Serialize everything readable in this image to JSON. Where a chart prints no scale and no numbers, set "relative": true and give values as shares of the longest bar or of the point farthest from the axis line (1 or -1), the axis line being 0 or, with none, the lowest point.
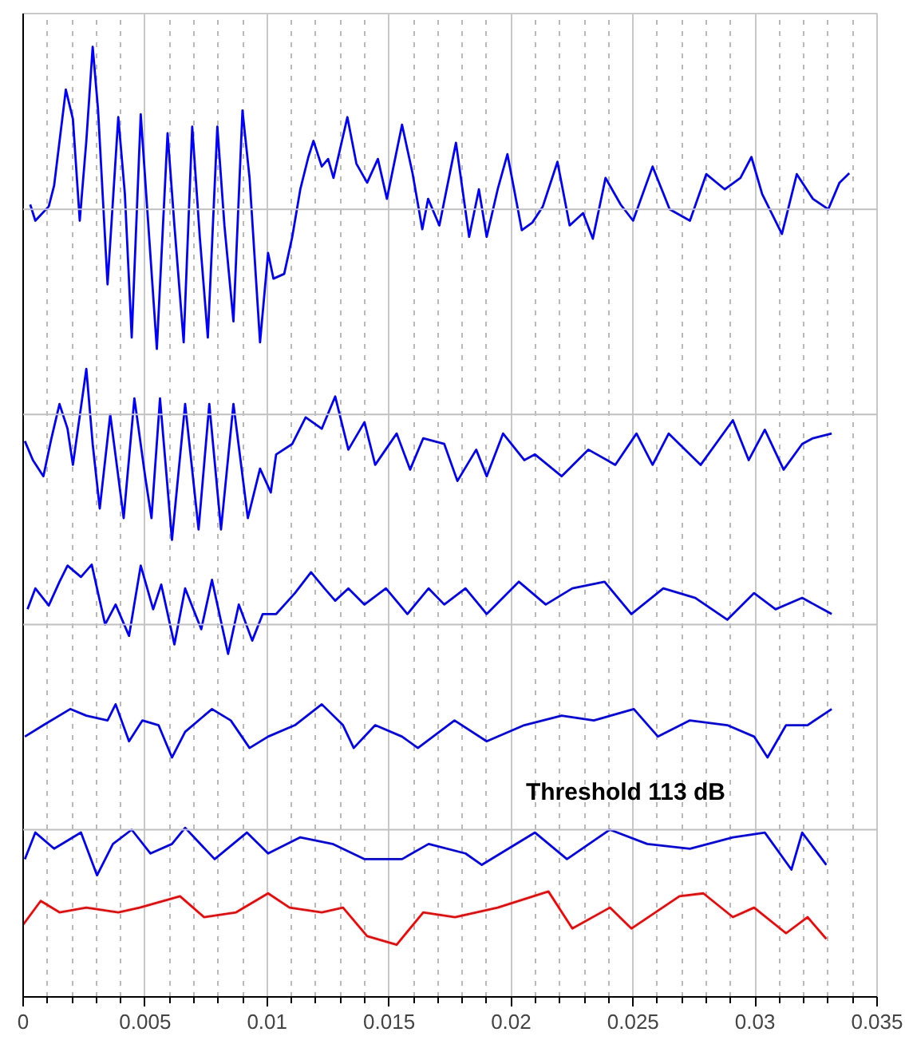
{
  "chart_data": {
    "type": "line",
    "relative": true,
    "xlim": [
      0,
      0.035
    ],
    "xticks": [
      0,
      0.005,
      0.01,
      0.015,
      0.02,
      0.025,
      0.03,
      0.035
    ],
    "grid": "x",
    "marker": "none",
    "line_style": "solid",
    "tick_labels": "x",
    "annotations": [
      "Threshold 113 dB"
    ],
    "ref_lines": [
      {
        "axis": "y",
        "value": 0.829,
        "color": "#c0c0c0"
      },
      {
        "axis": "y",
        "value": 0.613,
        "color": "#c0c0c0"
      },
      {
        "axis": "y",
        "value": 0.392,
        "color": "#c0c0c0"
      },
      {
        "axis": "y",
        "value": 0.176,
        "color": "#c0c0c0"
      }
    ],
    "series": [
      {
        "color": "#0000ff",
        "x": [
          0.00029,
          0.0005,
          0.00105,
          0.00127,
          0.00175,
          0.00204,
          0.00232,
          0.00259,
          0.00285,
          0.00307,
          0.00346,
          0.0039,
          0.00417,
          0.00445,
          0.00482,
          0.0051,
          0.00548,
          0.00592,
          0.0062,
          0.00658,
          0.00693,
          0.00724,
          0.00757,
          0.00796,
          0.00825,
          0.00862,
          0.00899,
          0.00928,
          0.00971,
          0.01004,
          0.01026,
          0.0107,
          0.01103,
          0.01136,
          0.01169,
          0.0119,
          0.01224,
          0.0125,
          0.01272,
          0.01329,
          0.01366,
          0.0141,
          0.01454,
          0.01491,
          0.01553,
          0.01596,
          0.01636,
          0.0166,
          0.01706,
          0.01774,
          0.01828,
          0.01868,
          0.019,
          0.01945,
          0.01985,
          0.02044,
          0.02087,
          0.0213,
          0.0219,
          0.0224,
          0.02295,
          0.02335,
          0.02387,
          0.02449,
          0.025,
          0.0258,
          0.0265,
          0.02733,
          0.028,
          0.02876,
          0.0294,
          0.02985,
          0.03029,
          0.0311,
          0.03171,
          0.03237,
          0.033,
          0.03346,
          0.03386
        ],
        "values": [
          0.834,
          0.817,
          0.832,
          0.854,
          0.955,
          0.924,
          0.817,
          0.901,
          1.0,
          0.934,
          0.75,
          0.926,
          0.845,
          0.694,
          0.929,
          0.824,
          0.682,
          0.909,
          0.812,
          0.689,
          0.916,
          0.8,
          0.694,
          0.916,
          0.812,
          0.711,
          0.933,
          0.862,
          0.689,
          0.783,
          0.756,
          0.761,
          0.8,
          0.85,
          0.884,
          0.901,
          0.874,
          0.882,
          0.862,
          0.926,
          0.877,
          0.857,
          0.882,
          0.84,
          0.918,
          0.867,
          0.808,
          0.84,
          0.812,
          0.899,
          0.8,
          0.85,
          0.8,
          0.85,
          0.887,
          0.807,
          0.815,
          0.832,
          0.879,
          0.812,
          0.825,
          0.798,
          0.862,
          0.834,
          0.817,
          0.874,
          0.829,
          0.817,
          0.866,
          0.85,
          0.862,
          0.884,
          0.845,
          0.803,
          0.866,
          0.84,
          0.829,
          0.857,
          0.867
        ]
      },
      {
        "color": "#0000ff",
        "x": [
          7e-05,
          0.0004,
          0.00083,
          0.00116,
          0.00149,
          0.00182,
          0.00204,
          0.00259,
          0.00285,
          0.00314,
          0.00357,
          0.00412,
          0.00456,
          0.005,
          0.00526,
          0.00561,
          0.0061,
          0.00664,
          0.00719,
          0.00763,
          0.00811,
          0.00862,
          0.00921,
          0.00971,
          0.01015,
          0.01037,
          0.01103,
          0.01158,
          0.01224,
          0.01279,
          0.01333,
          0.01399,
          0.01443,
          0.01531,
          0.01586,
          0.0164,
          0.01726,
          0.0178,
          0.01857,
          0.019,
          0.01967,
          0.02054,
          0.02098,
          0.02207,
          0.02317,
          0.02427,
          0.02514,
          0.0258,
          0.02646,
          0.02777,
          0.02909,
          0.02974,
          0.0304,
          0.03117,
          0.03193,
          0.03237,
          0.03314
        ],
        "values": [
          0.585,
          0.565,
          0.548,
          0.588,
          0.624,
          0.598,
          0.56,
          0.661,
          0.582,
          0.514,
          0.613,
          0.504,
          0.63,
          0.548,
          0.504,
          0.63,
          0.481,
          0.624,
          0.492,
          0.624,
          0.492,
          0.624,
          0.504,
          0.556,
          0.531,
          0.571,
          0.582,
          0.61,
          0.598,
          0.632,
          0.576,
          0.605,
          0.56,
          0.593,
          0.555,
          0.588,
          0.582,
          0.543,
          0.576,
          0.548,
          0.593,
          0.565,
          0.571,
          0.548,
          0.576,
          0.56,
          0.593,
          0.56,
          0.593,
          0.56,
          0.607,
          0.565,
          0.597,
          0.555,
          0.582,
          0.588,
          0.593
        ]
      },
      {
        "color": "#0000ff",
        "x": [
          0.00018,
          0.0005,
          0.00105,
          0.00149,
          0.00182,
          0.00237,
          0.00281,
          0.00336,
          0.00379,
          0.00434,
          0.00482,
          0.00533,
          0.00566,
          0.0062,
          0.00664,
          0.0073,
          0.00774,
          0.0084,
          0.00884,
          0.00939,
          0.00982,
          0.01037,
          0.01114,
          0.0118,
          0.01235,
          0.01279,
          0.01333,
          0.01399,
          0.01487,
          0.01575,
          0.01662,
          0.01726,
          0.01813,
          0.019,
          0.02032,
          0.02142,
          0.02251,
          0.02383,
          0.02493,
          0.02624,
          0.02755,
          0.02886,
          0.02996,
          0.03084,
          0.03193,
          0.03314
        ],
        "values": [
          0.408,
          0.43,
          0.412,
          0.437,
          0.454,
          0.442,
          0.455,
          0.392,
          0.413,
          0.38,
          0.454,
          0.408,
          0.434,
          0.371,
          0.43,
          0.387,
          0.439,
          0.361,
          0.413,
          0.375,
          0.403,
          0.403,
          0.425,
          0.447,
          0.43,
          0.417,
          0.43,
          0.413,
          0.43,
          0.403,
          0.43,
          0.413,
          0.43,
          0.403,
          0.437,
          0.413,
          0.43,
          0.437,
          0.403,
          0.43,
          0.42,
          0.397,
          0.425,
          0.408,
          0.42,
          0.403
        ]
      },
      {
        "color": "#0000ff",
        "x": [
          7e-05,
          0.00083,
          0.00193,
          0.00259,
          0.00346,
          0.00379,
          0.00434,
          0.00489,
          0.00555,
          0.0061,
          0.00664,
          0.00774,
          0.00851,
          0.00928,
          0.01004,
          0.01114,
          0.01224,
          0.01311,
          0.01355,
          0.01443,
          0.01553,
          0.01618,
          0.01768,
          0.019,
          0.02054,
          0.02207,
          0.02339,
          0.02503,
          0.02602,
          0.02733,
          0.02886,
          0.02996,
          0.03051,
          0.03127,
          0.03215,
          0.03314
        ],
        "values": [
          0.274,
          0.286,
          0.303,
          0.296,
          0.291,
          0.308,
          0.269,
          0.291,
          0.286,
          0.252,
          0.279,
          0.303,
          0.291,
          0.262,
          0.274,
          0.286,
          0.308,
          0.286,
          0.262,
          0.286,
          0.274,
          0.262,
          0.291,
          0.269,
          0.286,
          0.296,
          0.291,
          0.303,
          0.274,
          0.291,
          0.286,
          0.274,
          0.252,
          0.286,
          0.286,
          0.303
        ]
      },
      {
        "color": "#0000ff",
        "x": [
          7e-05,
          0.0005,
          0.00127,
          0.00237,
          0.00303,
          0.00368,
          0.00445,
          0.00522,
          0.0061,
          0.00664,
          0.00785,
          0.00917,
          0.01004,
          0.01136,
          0.01268,
          0.014,
          0.01553,
          0.01662,
          0.01813,
          0.0188,
          0.02098,
          0.02229,
          0.02405,
          0.02558,
          0.02733,
          0.02909,
          0.0304,
          0.03149,
          0.03193,
          0.03292
        ],
        "values": [
          0.145,
          0.173,
          0.156,
          0.173,
          0.128,
          0.161,
          0.176,
          0.151,
          0.161,
          0.178,
          0.145,
          0.173,
          0.151,
          0.168,
          0.161,
          0.145,
          0.145,
          0.161,
          0.151,
          0.139,
          0.173,
          0.145,
          0.176,
          0.161,
          0.156,
          0.168,
          0.173,
          0.134,
          0.173,
          0.139
        ]
      },
      {
        "color": "#ff0000",
        "x": [
          0.0,
          0.00072,
          0.00149,
          0.00259,
          0.0039,
          0.00478,
          0.00643,
          0.00741,
          0.00873,
          0.01004,
          0.01092,
          0.01224,
          0.01311,
          0.0141,
          0.01531,
          0.0164,
          0.0177,
          0.01945,
          0.02153,
          0.02251,
          0.02405,
          0.02493,
          0.0269,
          0.02788,
          0.02909,
          0.02996,
          0.03127,
          0.03215,
          0.03292
        ],
        "values": [
          0.076,
          0.101,
          0.089,
          0.094,
          0.089,
          0.094,
          0.106,
          0.084,
          0.089,
          0.109,
          0.094,
          0.089,
          0.094,
          0.064,
          0.055,
          0.089,
          0.084,
          0.094,
          0.111,
          0.072,
          0.094,
          0.072,
          0.106,
          0.109,
          0.084,
          0.094,
          0.067,
          0.084,
          0.061
        ]
      }
    ]
  }
}
